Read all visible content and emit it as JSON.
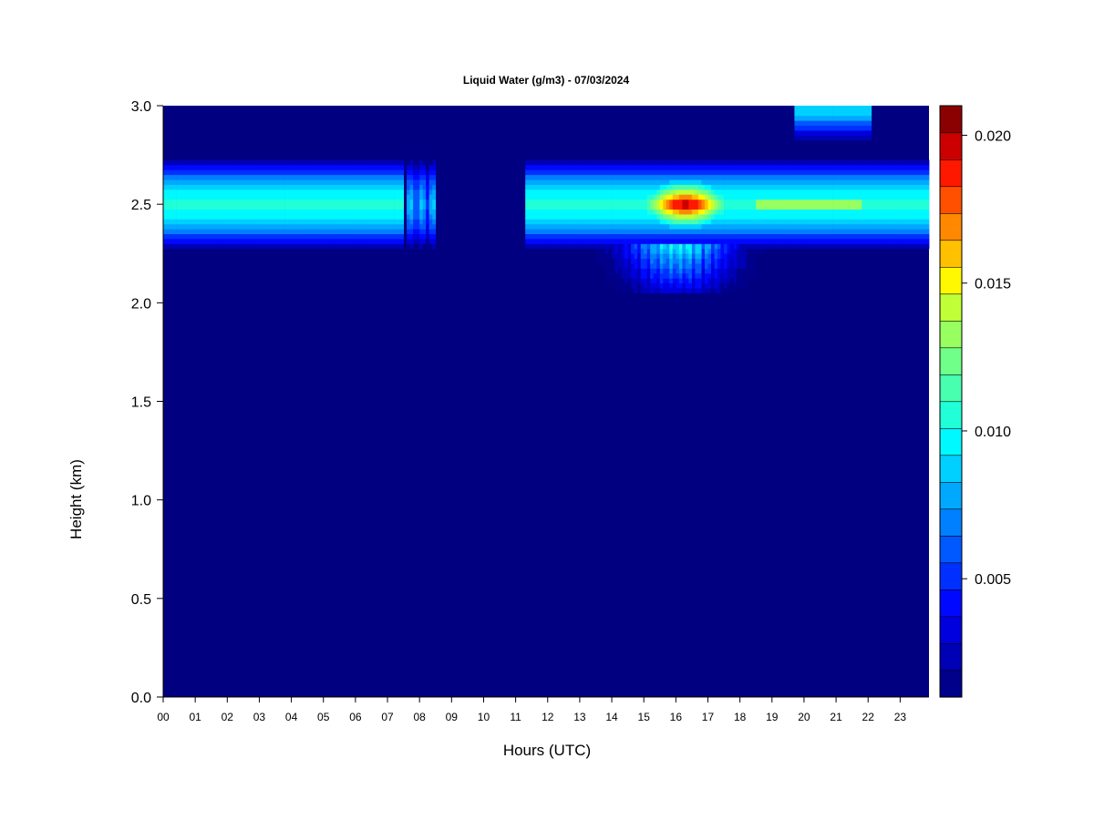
{
  "chart_data": {
    "type": "heatmap",
    "title": "Liquid Water (g/m3) - 07/03/2024",
    "xlabel": "Hours (UTC)",
    "ylabel": "Height (km)",
    "x_ticks": [
      "00",
      "01",
      "02",
      "03",
      "04",
      "05",
      "06",
      "07",
      "08",
      "09",
      "10",
      "11",
      "12",
      "13",
      "14",
      "15",
      "16",
      "17",
      "18",
      "19",
      "20",
      "21",
      "22",
      "23"
    ],
    "y_ticks": [
      "0.0",
      "0.5",
      "1.0",
      "1.5",
      "2.0",
      "2.5",
      "3.0"
    ],
    "xlim": [
      0,
      23.9
    ],
    "ylim": [
      0.0,
      3.0
    ],
    "colorbar": {
      "label_values": [
        "0.005",
        "0.010",
        "0.015",
        "0.020"
      ],
      "range": [
        0.001,
        0.021
      ],
      "levels": 20,
      "colors": [
        "#00008b",
        "#0000b5",
        "#0000de",
        "#0008ff",
        "#0030ff",
        "#0058ff",
        "#0080ff",
        "#00a8ff",
        "#00d0ff",
        "#00f8ff",
        "#20ffd8",
        "#48ffb0",
        "#70ff88",
        "#98ff60",
        "#c0ff38",
        "#fff800",
        "#ffc000",
        "#ff8800",
        "#ff5000",
        "#ff1800"
      ],
      "top_colors": [
        "#cc0000",
        "#8b0000"
      ]
    },
    "background_color": "#000080",
    "fields": [
      {
        "name": "main_layer",
        "center_km": 2.5,
        "half_width_km": 0.25,
        "segments": [
          {
            "start_hour": 0.0,
            "end_hour": 7.45,
            "peak": 0.0105
          },
          {
            "start_hour": 7.55,
            "end_hour": 8.45,
            "peak": 0.0085,
            "streaky": true
          },
          {
            "start_hour": 11.25,
            "end_hour": 23.9,
            "peak": 0.0105
          }
        ]
      },
      {
        "name": "intense_core",
        "start_hour": 13.2,
        "end_hour": 19.2,
        "center_km": 2.5,
        "peak": 0.0205,
        "peak_hour": 16.3
      },
      {
        "name": "lower_extension",
        "start_hour": 13.5,
        "end_hour": 19.0,
        "bottom_km": 2.05
      },
      {
        "name": "upper_cloud",
        "start_hour": 19.7,
        "end_hour": 22.1,
        "bottom_km": 2.8,
        "top_km": 3.0,
        "peak": 0.0085
      }
    ]
  }
}
